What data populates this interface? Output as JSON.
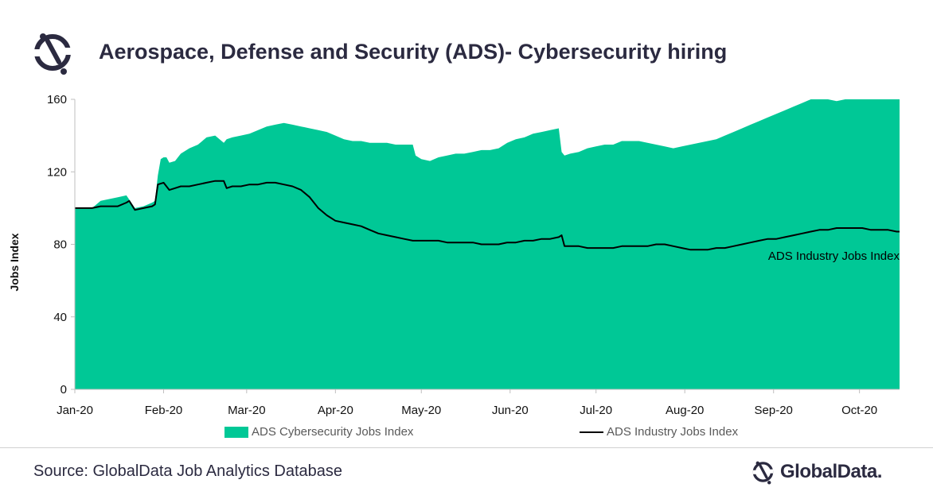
{
  "header": {
    "title": "Aerospace, Defense and Security (ADS)- Cybersecurity hiring",
    "logo_icon": "globaldata-logo-icon"
  },
  "footer": {
    "source": "Source: GlobalData Job Analytics Database",
    "brand": "GlobalData."
  },
  "colors": {
    "area": "#00c896",
    "line": "#000000",
    "text": "#2b2a40"
  },
  "chart_data": {
    "type": "area",
    "title": "Aerospace, Defense and Security (ADS)- Cybersecurity hiring",
    "xlabel": "",
    "ylabel": "Jobs Index",
    "ylim": [
      0,
      160
    ],
    "yticks": [
      0,
      40,
      80,
      120,
      160
    ],
    "xticks": [
      "Jan-20",
      "Feb-20",
      "Mar-20",
      "Apr-20",
      "May-20",
      "Jun-20",
      "Jul-20",
      "Aug-20",
      "Sep-20",
      "Oct-20"
    ],
    "xunit": "days since Jan-20",
    "grid": false,
    "legend_position": "bottom",
    "annotation": "ADS Industry Jobs Index",
    "series": [
      {
        "name": "ADS Cybersecurity Jobs Index",
        "type": "area",
        "x": [
          0,
          3,
          6,
          9,
          12,
          15,
          18,
          21,
          24,
          27,
          28,
          29,
          30,
          31,
          32,
          33,
          35,
          37,
          40,
          43,
          46,
          49,
          52,
          53,
          55,
          58,
          61,
          64,
          67,
          70,
          73,
          76,
          79,
          82,
          85,
          88,
          91,
          94,
          97,
          100,
          103,
          106,
          109,
          112,
          115,
          118,
          119,
          121,
          124,
          127,
          130,
          133,
          136,
          139,
          142,
          145,
          148,
          151,
          154,
          157,
          160,
          163,
          166,
          169,
          170,
          171,
          173,
          176,
          179,
          182,
          185,
          188,
          191,
          194,
          197,
          200,
          203,
          206,
          209,
          212,
          215,
          218,
          221,
          224,
          227,
          230,
          233,
          236,
          239,
          242,
          245,
          248,
          251,
          254,
          257,
          260,
          263,
          266,
          269,
          272,
          275,
          278,
          281,
          284,
          287,
          288
        ],
        "y": [
          100,
          100,
          100,
          104,
          105,
          106,
          107,
          100,
          101,
          103,
          104,
          118,
          127,
          128,
          128,
          125,
          126,
          130,
          133,
          135,
          139,
          140,
          136,
          138,
          139,
          140,
          141,
          143,
          145,
          146,
          147,
          146,
          145,
          144,
          143,
          142,
          140,
          138,
          137,
          137,
          136,
          136,
          136,
          135,
          135,
          135,
          129,
          127,
          126,
          128,
          129,
          130,
          130,
          131,
          132,
          132,
          133,
          136,
          138,
          139,
          141,
          142,
          143,
          144,
          131,
          129,
          130,
          131,
          133,
          134,
          135,
          135,
          137,
          137,
          137,
          136,
          135,
          134,
          133,
          134,
          135,
          136,
          137,
          138,
          140,
          142,
          144,
          146,
          148,
          150,
          152,
          154,
          156,
          158,
          160,
          160,
          160,
          159,
          160,
          160,
          160,
          160,
          160,
          160,
          160,
          160
        ]
      },
      {
        "name": "ADS Industry Jobs Index",
        "type": "line",
        "x": [
          0,
          3,
          6,
          9,
          12,
          15,
          18,
          19,
          21,
          24,
          27,
          28,
          29,
          31,
          33,
          35,
          37,
          40,
          43,
          46,
          49,
          52,
          53,
          55,
          58,
          61,
          64,
          67,
          70,
          73,
          76,
          79,
          82,
          85,
          88,
          91,
          94,
          97,
          100,
          103,
          106,
          109,
          112,
          115,
          118,
          121,
          124,
          127,
          130,
          133,
          136,
          139,
          142,
          145,
          148,
          151,
          154,
          157,
          160,
          163,
          166,
          169,
          170,
          171,
          173,
          176,
          179,
          182,
          185,
          188,
          191,
          194,
          197,
          200,
          203,
          206,
          209,
          212,
          215,
          218,
          221,
          224,
          227,
          230,
          233,
          236,
          239,
          242,
          245,
          248,
          251,
          254,
          257,
          260,
          263,
          266,
          269,
          272,
          275,
          278,
          281,
          284,
          287,
          288
        ],
        "y": [
          100,
          100,
          100,
          101,
          101,
          101,
          103,
          104,
          99,
          100,
          101,
          102,
          113,
          114,
          110,
          111,
          112,
          112,
          113,
          114,
          115,
          115,
          111,
          112,
          112,
          113,
          113,
          114,
          114,
          113,
          112,
          110,
          106,
          100,
          96,
          93,
          92,
          91,
          90,
          88,
          86,
          85,
          84,
          83,
          82,
          82,
          82,
          82,
          81,
          81,
          81,
          81,
          80,
          80,
          80,
          81,
          81,
          82,
          82,
          83,
          83,
          84,
          85,
          79,
          79,
          79,
          78,
          78,
          78,
          78,
          79,
          79,
          79,
          79,
          80,
          80,
          79,
          78,
          77,
          77,
          77,
          78,
          78,
          79,
          80,
          81,
          82,
          83,
          83,
          84,
          85,
          86,
          87,
          88,
          88,
          89,
          89,
          89,
          89,
          88,
          88,
          88,
          87,
          87
        ]
      }
    ]
  },
  "legend": {
    "area_label": "ADS Cybersecurity Jobs Index",
    "line_label": "ADS Industry Jobs Index"
  }
}
